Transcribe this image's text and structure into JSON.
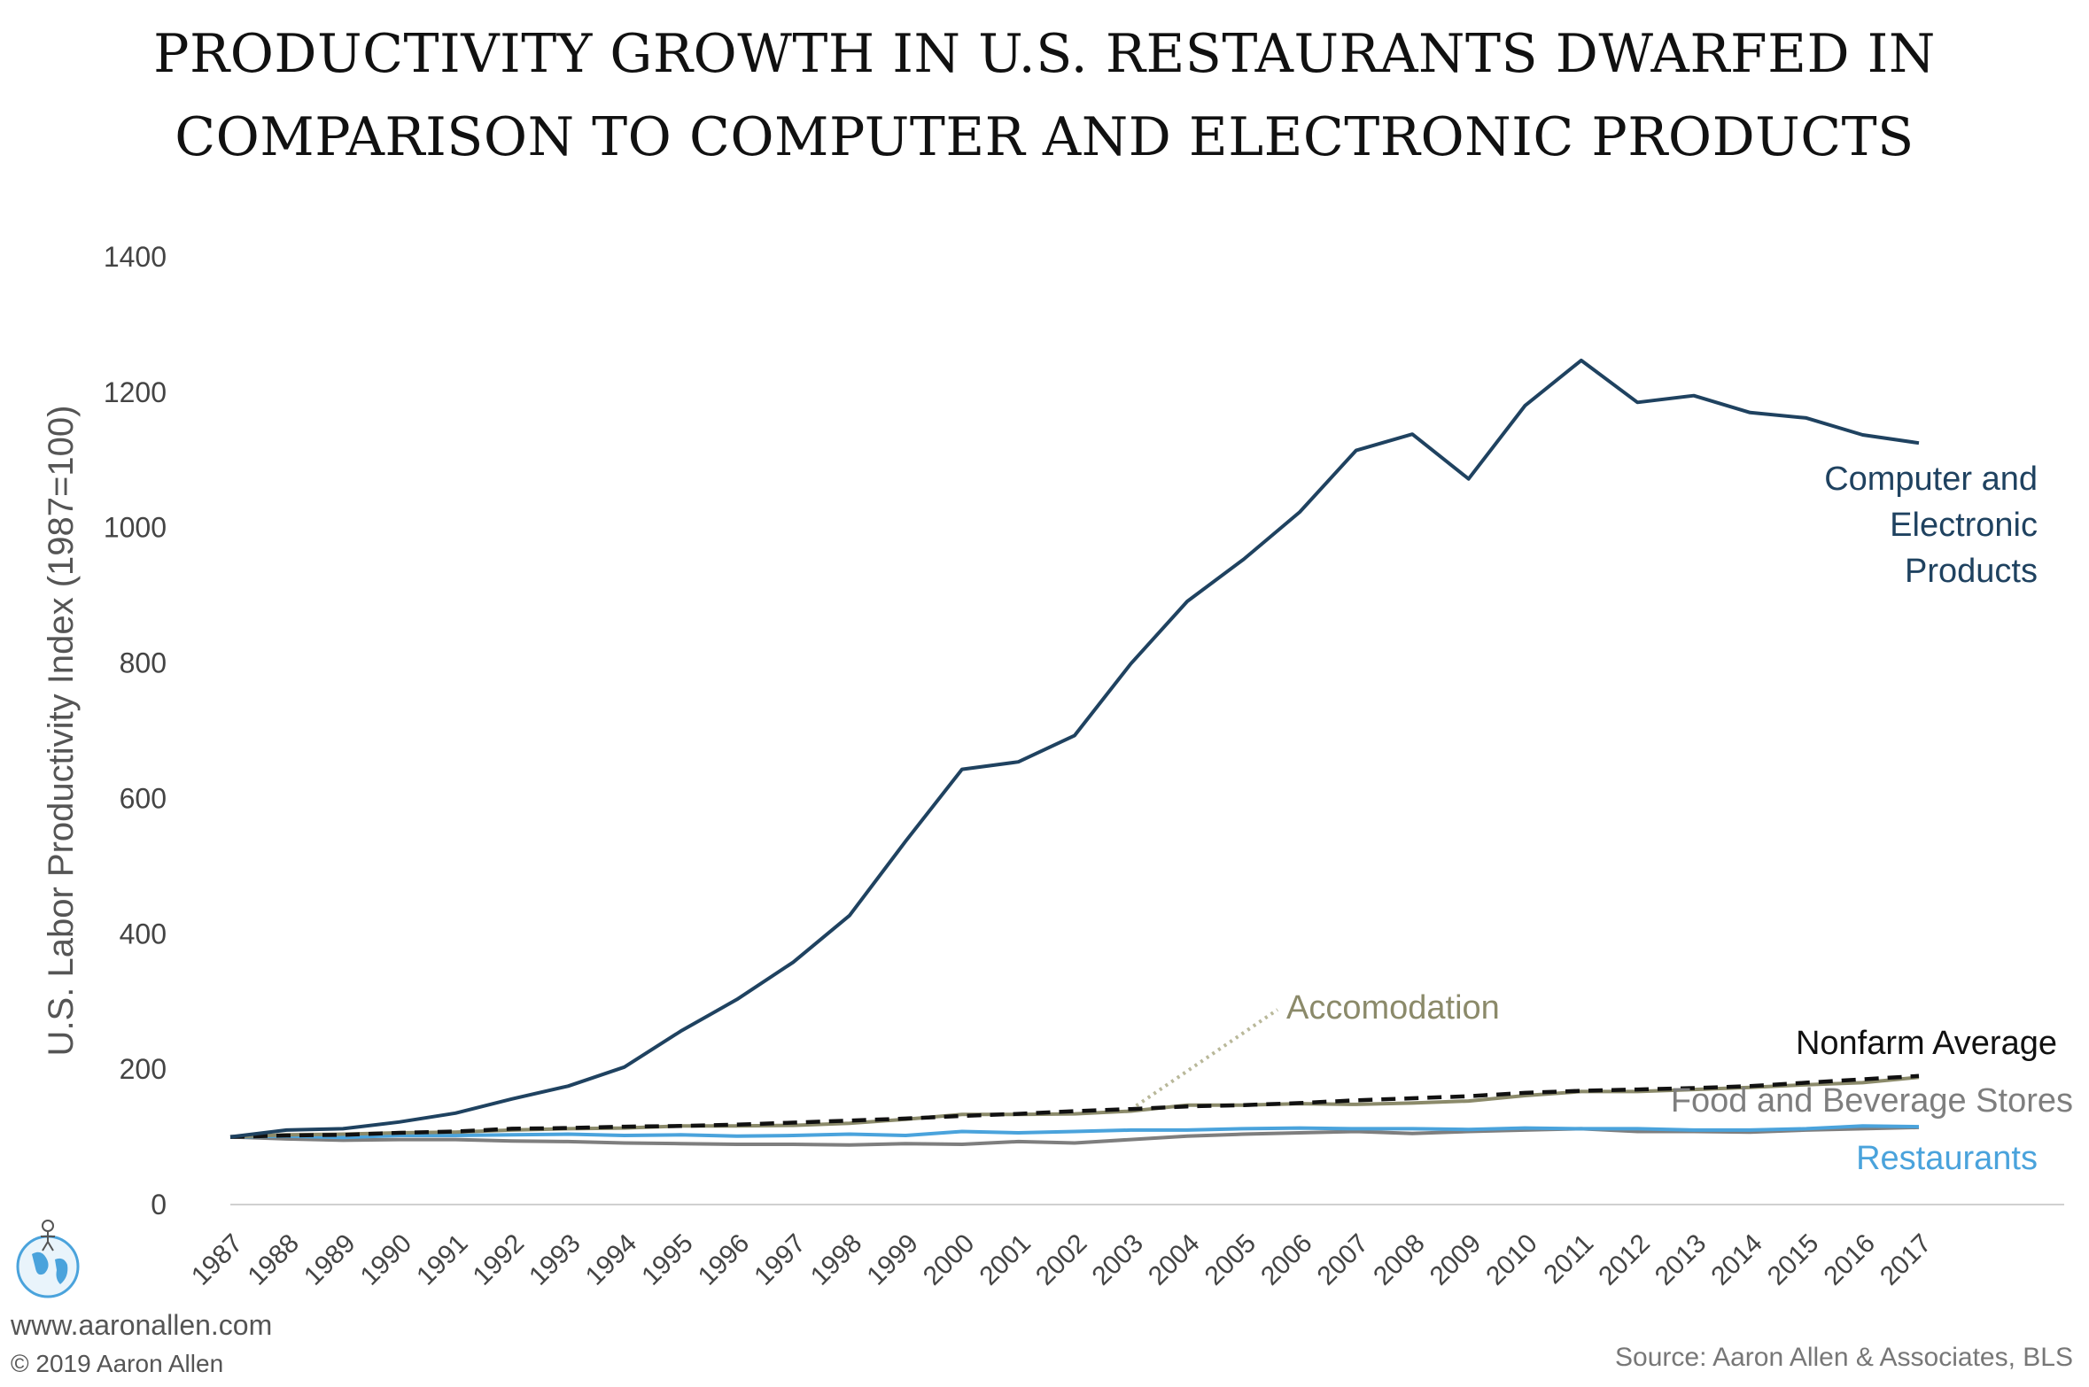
{
  "title_lines": [
    "PRODUCTIVITY GROWTH IN U.S. RESTAURANTS DWARFED IN",
    "COMPARISON TO COMPUTER AND ELECTRONIC PRODUCTS"
  ],
  "footer": {
    "url": "www.aaronallen.com",
    "copyright": "© 2019 Aaron Allen",
    "source": "Source: Aaron Allen & Associates, BLS"
  },
  "chart_data": {
    "type": "line",
    "title": "PRODUCTIVITY GROWTH IN U.S. RESTAURANTS DWARFED IN COMPARISON TO COMPUTER AND ELECTRONIC PRODUCTS",
    "xlabel": "",
    "ylabel": "U.S. Labor Productivity Index (1987=100)",
    "ylim": [
      0,
      1400
    ],
    "yticks": [
      "0",
      "200",
      "400",
      "600",
      "800",
      "1000",
      "1200",
      "1400"
    ],
    "grid": false,
    "categories": [
      "1987",
      "1988",
      "1989",
      "1990",
      "1991",
      "1992",
      "1993",
      "1994",
      "1995",
      "1996",
      "1997",
      "1998",
      "1999",
      "2000",
      "2001",
      "2002",
      "2003",
      "2004",
      "2005",
      "2006",
      "2007",
      "2008",
      "2009",
      "2010",
      "2011",
      "2012",
      "2013",
      "2014",
      "2015",
      "2016",
      "2017"
    ],
    "series": [
      {
        "name": "Computer and Electronic Products",
        "label_lines": [
          "Computer and",
          "Electronic",
          "Products"
        ],
        "color": "#1f4260",
        "dash": "none",
        "values": [
          100,
          110,
          112,
          122,
          135,
          156,
          175,
          203,
          256,
          303,
          358,
          427,
          537,
          643,
          654,
          693,
          799,
          891,
          953,
          1023,
          1114,
          1138,
          1072,
          1180,
          1247,
          1185,
          1195,
          1170,
          1162,
          1137,
          1125
        ]
      },
      {
        "name": "Accomodation",
        "label_lines": [
          "Accomodation"
        ],
        "color": "#8b8a6a",
        "dash": "none",
        "values": [
          100,
          103,
          104,
          106,
          107,
          110,
          112,
          113,
          116,
          116,
          117,
          120,
          126,
          133,
          133,
          134,
          138,
          147,
          147,
          149,
          148,
          150,
          153,
          161,
          167,
          167,
          170,
          173,
          177,
          180,
          188
        ]
      },
      {
        "name": "Nonfarm Average",
        "label_lines": [
          "Nonfarm Average"
        ],
        "color": "#111111",
        "dash": "16,10",
        "values": [
          100,
          102,
          103,
          106,
          108,
          112,
          113,
          115,
          116,
          118,
          121,
          124,
          127,
          131,
          134,
          138,
          141,
          145,
          147,
          150,
          154,
          157,
          160,
          165,
          168,
          170,
          172,
          175,
          180,
          185,
          190
        ]
      },
      {
        "name": "Food and Beverage Stores",
        "label_lines": [
          "Food and Beverage Stores"
        ],
        "color": "#7e7e7e",
        "dash": "none",
        "values": [
          100,
          97,
          95,
          96,
          96,
          94,
          93,
          91,
          90,
          89,
          89,
          88,
          90,
          89,
          93,
          91,
          96,
          101,
          104,
          106,
          108,
          105,
          108,
          110,
          112,
          108,
          108,
          107,
          110,
          112,
          114
        ]
      },
      {
        "name": "Restaurants",
        "label_lines": [
          "Restaurants"
        ],
        "color": "#4aa3dc",
        "dash": "none",
        "values": [
          100,
          101,
          99,
          102,
          102,
          103,
          104,
          102,
          103,
          101,
          102,
          104,
          102,
          108,
          106,
          108,
          110,
          110,
          112,
          113,
          112,
          112,
          111,
          113,
          112,
          112,
          110,
          110,
          112,
          116,
          115
        ]
      }
    ]
  }
}
